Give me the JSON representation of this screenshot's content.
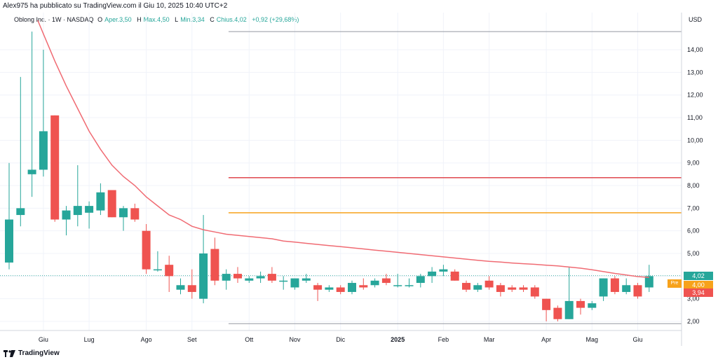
{
  "header": {
    "published": "Alex975 ha pubblicato su TradingView.com il Giu 10, 2025 10:40 UTC+2",
    "symbol": "Oblong Inc. · 1W · NASDAQ",
    "open_label": "O",
    "open_value": "Aper.3,50",
    "high_label": "H",
    "high_value": "Max.4,50",
    "low_label": "L",
    "low_value": "Min.3,34",
    "close_label": "C",
    "close_value": "Chius.4,02",
    "change_value": "+0,92 (+29,68%)"
  },
  "footer": {
    "brand": "TradingView"
  },
  "tags": {
    "last": "4,02",
    "pre_label": "Pre",
    "pre_price": "4,00",
    "ma": "3,94"
  },
  "colors": {
    "up": "#26a69a",
    "down": "#ef5350",
    "ma": "#f06b73",
    "hline_red": "#e0484f",
    "hline_orange": "#f7a21b",
    "hline_gray": "#9598a1",
    "tag_last": "#26a69a",
    "tag_ma": "#ef5350",
    "tag_pre": "#f7a21b"
  },
  "chart_data": {
    "type": "candlestick",
    "timeframe": "1W",
    "currency": "USD",
    "y_axis_ticks": [
      2,
      3,
      4,
      5,
      6,
      7,
      8,
      9,
      10,
      11,
      12,
      13,
      14
    ],
    "y_axis_tick_labels": [
      "2,00",
      "3,00",
      "4,00",
      "5,00",
      "6,00",
      "7,00",
      "8,00",
      "9,00",
      "10,00",
      "11,00",
      "12,00",
      "13,00",
      "14,00"
    ],
    "ylim": [
      1.5,
      15
    ],
    "x_axis_labels": [
      {
        "label": "Giu",
        "week": 3
      },
      {
        "label": "Lug",
        "week": 7
      },
      {
        "label": "Ago",
        "week": 12
      },
      {
        "label": "Set",
        "week": 16
      },
      {
        "label": "Ott",
        "week": 21
      },
      {
        "label": "Nov",
        "week": 25
      },
      {
        "label": "Dic",
        "week": 29
      },
      {
        "label": "2025",
        "week": 34
      },
      {
        "label": "Feb",
        "week": 38
      },
      {
        "label": "Mar",
        "week": 42
      },
      {
        "label": "Apr",
        "week": 47
      },
      {
        "label": "Mag",
        "week": 51
      },
      {
        "label": "Giu",
        "week": 55
      }
    ],
    "candles": [
      {
        "o": 4.6,
        "h": 9.0,
        "l": 4.3,
        "c": 6.5
      },
      {
        "o": 6.7,
        "h": 12.8,
        "l": 6.2,
        "c": 7.0
      },
      {
        "o": 8.5,
        "h": 14.8,
        "l": 7.5,
        "c": 8.7
      },
      {
        "o": 8.7,
        "h": 14.0,
        "l": 8.4,
        "c": 10.4
      },
      {
        "o": 11.1,
        "h": 11.1,
        "l": 6.4,
        "c": 6.5
      },
      {
        "o": 6.5,
        "h": 7.1,
        "l": 5.8,
        "c": 6.9
      },
      {
        "o": 6.7,
        "h": 8.9,
        "l": 6.2,
        "c": 7.1
      },
      {
        "o": 6.8,
        "h": 7.3,
        "l": 6.1,
        "c": 7.1
      },
      {
        "o": 6.9,
        "h": 8.1,
        "l": 6.7,
        "c": 7.7
      },
      {
        "o": 7.8,
        "h": 7.8,
        "l": 6.6,
        "c": 6.6
      },
      {
        "o": 6.6,
        "h": 7.1,
        "l": 6.0,
        "c": 7.0
      },
      {
        "o": 7.0,
        "h": 7.2,
        "l": 6.4,
        "c": 6.5
      },
      {
        "o": 6.0,
        "h": 6.3,
        "l": 4.1,
        "c": 4.3
      },
      {
        "o": 4.3,
        "h": 5.1,
        "l": 4.2,
        "c": 4.3
      },
      {
        "o": 4.5,
        "h": 4.9,
        "l": 3.3,
        "c": 4.0
      },
      {
        "o": 3.4,
        "h": 3.9,
        "l": 3.2,
        "c": 3.6
      },
      {
        "o": 3.6,
        "h": 4.3,
        "l": 3.0,
        "c": 3.3
      },
      {
        "o": 3.0,
        "h": 6.7,
        "l": 2.8,
        "c": 5.0
      },
      {
        "o": 5.2,
        "h": 5.7,
        "l": 3.6,
        "c": 3.8
      },
      {
        "o": 3.8,
        "h": 4.3,
        "l": 3.4,
        "c": 4.1
      },
      {
        "o": 4.1,
        "h": 4.4,
        "l": 3.7,
        "c": 3.9
      },
      {
        "o": 3.8,
        "h": 4.0,
        "l": 3.7,
        "c": 3.9
      },
      {
        "o": 3.9,
        "h": 4.2,
        "l": 3.7,
        "c": 4.0
      },
      {
        "o": 4.1,
        "h": 4.4,
        "l": 3.7,
        "c": 3.8
      },
      {
        "o": 3.8,
        "h": 4.0,
        "l": 3.4,
        "c": 3.8
      },
      {
        "o": 3.5,
        "h": 3.9,
        "l": 3.4,
        "c": 3.9
      },
      {
        "o": 3.8,
        "h": 4.1,
        "l": 3.7,
        "c": 3.9
      },
      {
        "o": 3.6,
        "h": 3.7,
        "l": 2.9,
        "c": 3.4
      },
      {
        "o": 3.4,
        "h": 3.6,
        "l": 3.3,
        "c": 3.5
      },
      {
        "o": 3.5,
        "h": 3.6,
        "l": 3.2,
        "c": 3.3
      },
      {
        "o": 3.3,
        "h": 3.8,
        "l": 3.2,
        "c": 3.7
      },
      {
        "o": 3.6,
        "h": 3.9,
        "l": 3.4,
        "c": 3.5
      },
      {
        "o": 3.6,
        "h": 3.9,
        "l": 3.5,
        "c": 3.8
      },
      {
        "o": 3.9,
        "h": 4.1,
        "l": 3.6,
        "c": 3.7
      },
      {
        "o": 3.6,
        "h": 4.1,
        "l": 3.5,
        "c": 3.6
      },
      {
        "o": 3.6,
        "h": 3.9,
        "l": 3.5,
        "c": 3.6
      },
      {
        "o": 3.7,
        "h": 4.1,
        "l": 3.5,
        "c": 4.0
      },
      {
        "o": 4.0,
        "h": 4.4,
        "l": 3.7,
        "c": 4.2
      },
      {
        "o": 4.2,
        "h": 4.5,
        "l": 4.0,
        "c": 4.3
      },
      {
        "o": 4.2,
        "h": 4.3,
        "l": 3.8,
        "c": 3.8
      },
      {
        "o": 3.7,
        "h": 3.8,
        "l": 3.3,
        "c": 3.4
      },
      {
        "o": 3.4,
        "h": 3.7,
        "l": 3.3,
        "c": 3.6
      },
      {
        "o": 3.8,
        "h": 4.0,
        "l": 3.4,
        "c": 3.5
      },
      {
        "o": 3.6,
        "h": 3.7,
        "l": 3.1,
        "c": 3.3
      },
      {
        "o": 3.5,
        "h": 3.6,
        "l": 3.3,
        "c": 3.4
      },
      {
        "o": 3.5,
        "h": 3.6,
        "l": 3.3,
        "c": 3.4
      },
      {
        "o": 3.5,
        "h": 3.6,
        "l": 3.0,
        "c": 3.1
      },
      {
        "o": 3.0,
        "h": 3.0,
        "l": 2.0,
        "c": 2.5
      },
      {
        "o": 2.6,
        "h": 2.7,
        "l": 2.0,
        "c": 2.1
      },
      {
        "o": 2.1,
        "h": 4.4,
        "l": 2.1,
        "c": 2.9
      },
      {
        "o": 2.9,
        "h": 3.0,
        "l": 2.3,
        "c": 2.6
      },
      {
        "o": 2.6,
        "h": 2.9,
        "l": 2.5,
        "c": 2.8
      },
      {
        "o": 3.1,
        "h": 3.9,
        "l": 2.9,
        "c": 3.9
      },
      {
        "o": 3.9,
        "h": 4.0,
        "l": 3.2,
        "c": 3.3
      },
      {
        "o": 3.3,
        "h": 3.9,
        "l": 3.2,
        "c": 3.6
      },
      {
        "o": 3.6,
        "h": 3.7,
        "l": 3.0,
        "c": 3.1
      },
      {
        "o": 3.5,
        "h": 4.5,
        "l": 3.3,
        "c": 4.0
      }
    ],
    "moving_average": {
      "points": [
        [
          2.5,
          15.3
        ],
        [
          3,
          14.7
        ],
        [
          4,
          13.5
        ],
        [
          5,
          12.4
        ],
        [
          6,
          11.4
        ],
        [
          7,
          10.4
        ],
        [
          8,
          9.6
        ],
        [
          9,
          8.9
        ],
        [
          10,
          8.4
        ],
        [
          11,
          8.0
        ],
        [
          12,
          7.5
        ],
        [
          13,
          7.1
        ],
        [
          14,
          6.7
        ],
        [
          15,
          6.5
        ],
        [
          16,
          6.2
        ],
        [
          17,
          6.05
        ],
        [
          18,
          5.95
        ],
        [
          19,
          5.85
        ],
        [
          20,
          5.8
        ],
        [
          21,
          5.75
        ],
        [
          22,
          5.7
        ],
        [
          23,
          5.65
        ],
        [
          24,
          5.55
        ],
        [
          25,
          5.5
        ],
        [
          26,
          5.45
        ],
        [
          27,
          5.4
        ],
        [
          28,
          5.35
        ],
        [
          29,
          5.3
        ],
        [
          30,
          5.25
        ],
        [
          31,
          5.2
        ],
        [
          32,
          5.15
        ],
        [
          33,
          5.1
        ],
        [
          34,
          5.05
        ],
        [
          35,
          5.0
        ],
        [
          36,
          4.95
        ],
        [
          37,
          4.9
        ],
        [
          38,
          4.85
        ],
        [
          39,
          4.8
        ],
        [
          40,
          4.75
        ],
        [
          41,
          4.7
        ],
        [
          42,
          4.65
        ],
        [
          43,
          4.62
        ],
        [
          44,
          4.58
        ],
        [
          45,
          4.55
        ],
        [
          46,
          4.52
        ],
        [
          47,
          4.48
        ],
        [
          48,
          4.45
        ],
        [
          49,
          4.4
        ],
        [
          50,
          4.35
        ],
        [
          51,
          4.28
        ],
        [
          52,
          4.2
        ],
        [
          53,
          4.12
        ],
        [
          54,
          4.05
        ],
        [
          55,
          3.98
        ],
        [
          56,
          3.94
        ]
      ]
    },
    "horizontal_lines": [
      {
        "price": 14.8,
        "from_week": 19.2
      },
      {
        "price": 8.35,
        "from_week": 19.2
      },
      {
        "price": 6.8,
        "from_week": 19.2
      },
      {
        "price": 1.9,
        "from_week": 19.2
      }
    ],
    "last_price_line": 4.02
  }
}
